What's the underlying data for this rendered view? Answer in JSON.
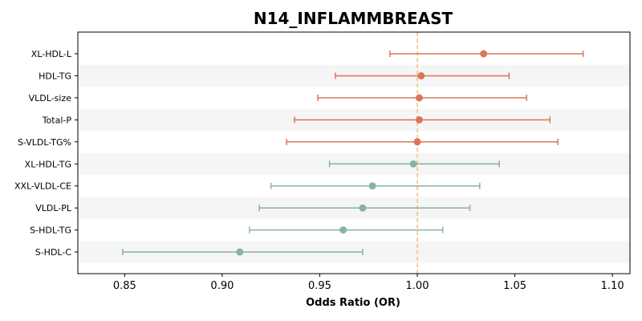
{
  "chart_data": {
    "type": "forest",
    "title": "N14_INFLAMMBREAST",
    "xlabel": "Odds Ratio (OR)",
    "ylabel": "",
    "xlim": [
      0.826,
      1.109
    ],
    "xticks": [
      0.85,
      0.9,
      0.95,
      1.0,
      1.05,
      1.1
    ],
    "xtick_labels": [
      "0.85",
      "0.90",
      "0.95",
      "1.00",
      "1.05",
      "1.10"
    ],
    "reference_line": 1.0,
    "reference_line_color": "#f0c27b",
    "row_band_color": "#f5f5f5",
    "grid": false,
    "colors": {
      "positive": "#d9765a",
      "negative": "#86b49e"
    },
    "rows": [
      {
        "label": "XL-HDL-L",
        "or": 1.034,
        "lower": 0.986,
        "upper": 1.085,
        "group": "positive"
      },
      {
        "label": "HDL-TG",
        "or": 1.002,
        "lower": 0.958,
        "upper": 1.047,
        "group": "positive"
      },
      {
        "label": "VLDL-size",
        "or": 1.001,
        "lower": 0.949,
        "upper": 1.056,
        "group": "positive"
      },
      {
        "label": "Total-P",
        "or": 1.001,
        "lower": 0.937,
        "upper": 1.068,
        "group": "positive"
      },
      {
        "label": "S-VLDL-TG%",
        "or": 1.0,
        "lower": 0.933,
        "upper": 1.072,
        "group": "positive"
      },
      {
        "label": "XL-HDL-TG",
        "or": 0.998,
        "lower": 0.955,
        "upper": 1.042,
        "group": "negative"
      },
      {
        "label": "XXL-VLDL-CE",
        "or": 0.977,
        "lower": 0.925,
        "upper": 1.032,
        "group": "negative"
      },
      {
        "label": "VLDL-PL",
        "or": 0.972,
        "lower": 0.919,
        "upper": 1.027,
        "group": "negative"
      },
      {
        "label": "S-HDL-TG",
        "or": 0.962,
        "lower": 0.914,
        "upper": 1.013,
        "group": "negative"
      },
      {
        "label": "S-HDL-C",
        "or": 0.909,
        "lower": 0.849,
        "upper": 0.972,
        "group": "negative"
      }
    ]
  }
}
